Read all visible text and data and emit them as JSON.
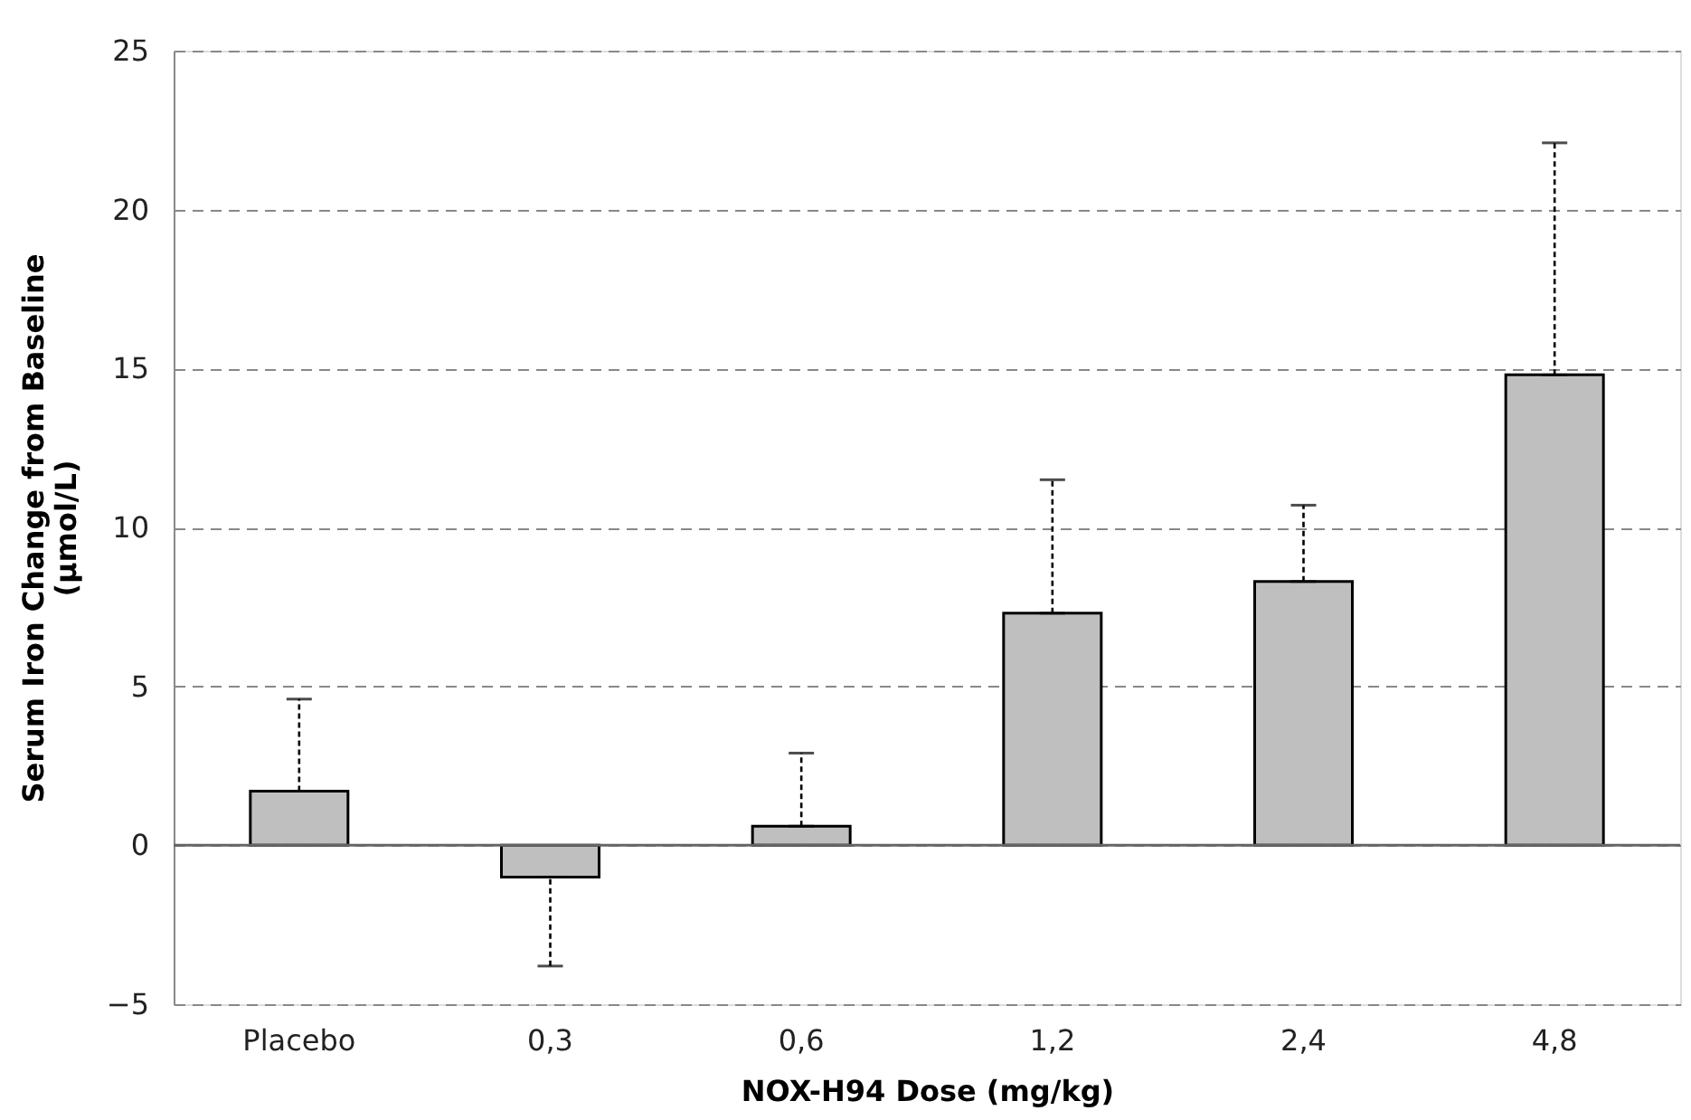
{
  "chart_data": {
    "type": "bar",
    "xlabel": "NOX-H94 Dose (mg/kg)",
    "ylabel": "Serum Iron Change from Baseline (µmol/L)",
    "categories": [
      "Placebo",
      "0,3",
      "0,6",
      "1,2",
      "2,4",
      "4,8"
    ],
    "values": [
      1.7,
      -1.0,
      0.6,
      7.3,
      8.3,
      14.8
    ],
    "errors": [
      [
        1.7,
        4.6
      ],
      [
        -3.8,
        -1.0
      ],
      [
        0.6,
        2.9
      ],
      [
        7.3,
        11.5
      ],
      [
        8.3,
        10.7
      ],
      [
        14.8,
        22.1
      ]
    ],
    "color": "#bfbfbf",
    "ylim": [
      -5,
      25
    ],
    "yticks": [
      -5,
      0,
      5,
      10,
      15,
      20,
      25
    ],
    "grid": "y"
  }
}
